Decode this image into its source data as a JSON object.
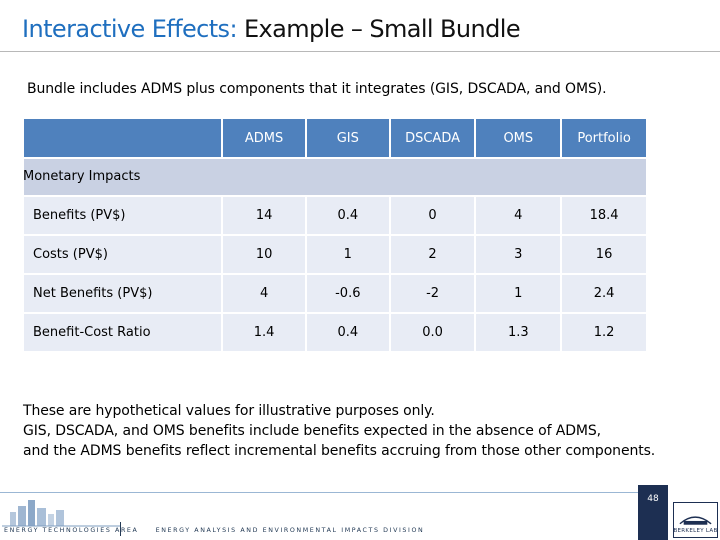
{
  "title": {
    "accent": "Interactive Effects:",
    "rest": "Example – Small Bundle"
  },
  "subtitle": "Bundle includes ADMS plus components that it integrates (GIS, DSCADA, and OMS).",
  "table": {
    "columns": [
      "ADMS",
      "GIS",
      "DSCADA",
      "OMS",
      "Portfolio"
    ],
    "group_label": "Monetary Impacts",
    "rows": [
      {
        "label": "Benefits (PV$)",
        "values": [
          "14",
          "0.4",
          "0",
          "4",
          "18.4"
        ]
      },
      {
        "label": "Costs (PV$)",
        "values": [
          "10",
          "1",
          "2",
          "3",
          "16"
        ]
      },
      {
        "label": "Net Benefits (PV$)",
        "values": [
          "4",
          "-0.6",
          "-2",
          "1",
          "2.4"
        ]
      },
      {
        "label": "Benefit-Cost Ratio",
        "values": [
          "1.4",
          "0.4",
          "0.0",
          "1.3",
          "1.2"
        ]
      }
    ]
  },
  "notes": [
    "These are hypothetical values for illustrative purposes only.",
    "GIS, DSCADA, and OMS benefits include benefits expected in the absence of ADMS,",
    "and the ADMS benefits reflect incremental benefits accruing from those other components."
  ],
  "footer": {
    "left_text": "Energy Technologies Area",
    "mid_text": "Energy Analysis and Environmental Impacts Division",
    "page_number": "48",
    "lab_name": "BERKELEY LAB"
  },
  "colors": {
    "accent": "#1f6fbf",
    "header_fill": "#4f81bd",
    "group_fill": "#c9d1e3",
    "row_fill": "#e8ecf5",
    "footer_navy": "#1d2f52"
  }
}
